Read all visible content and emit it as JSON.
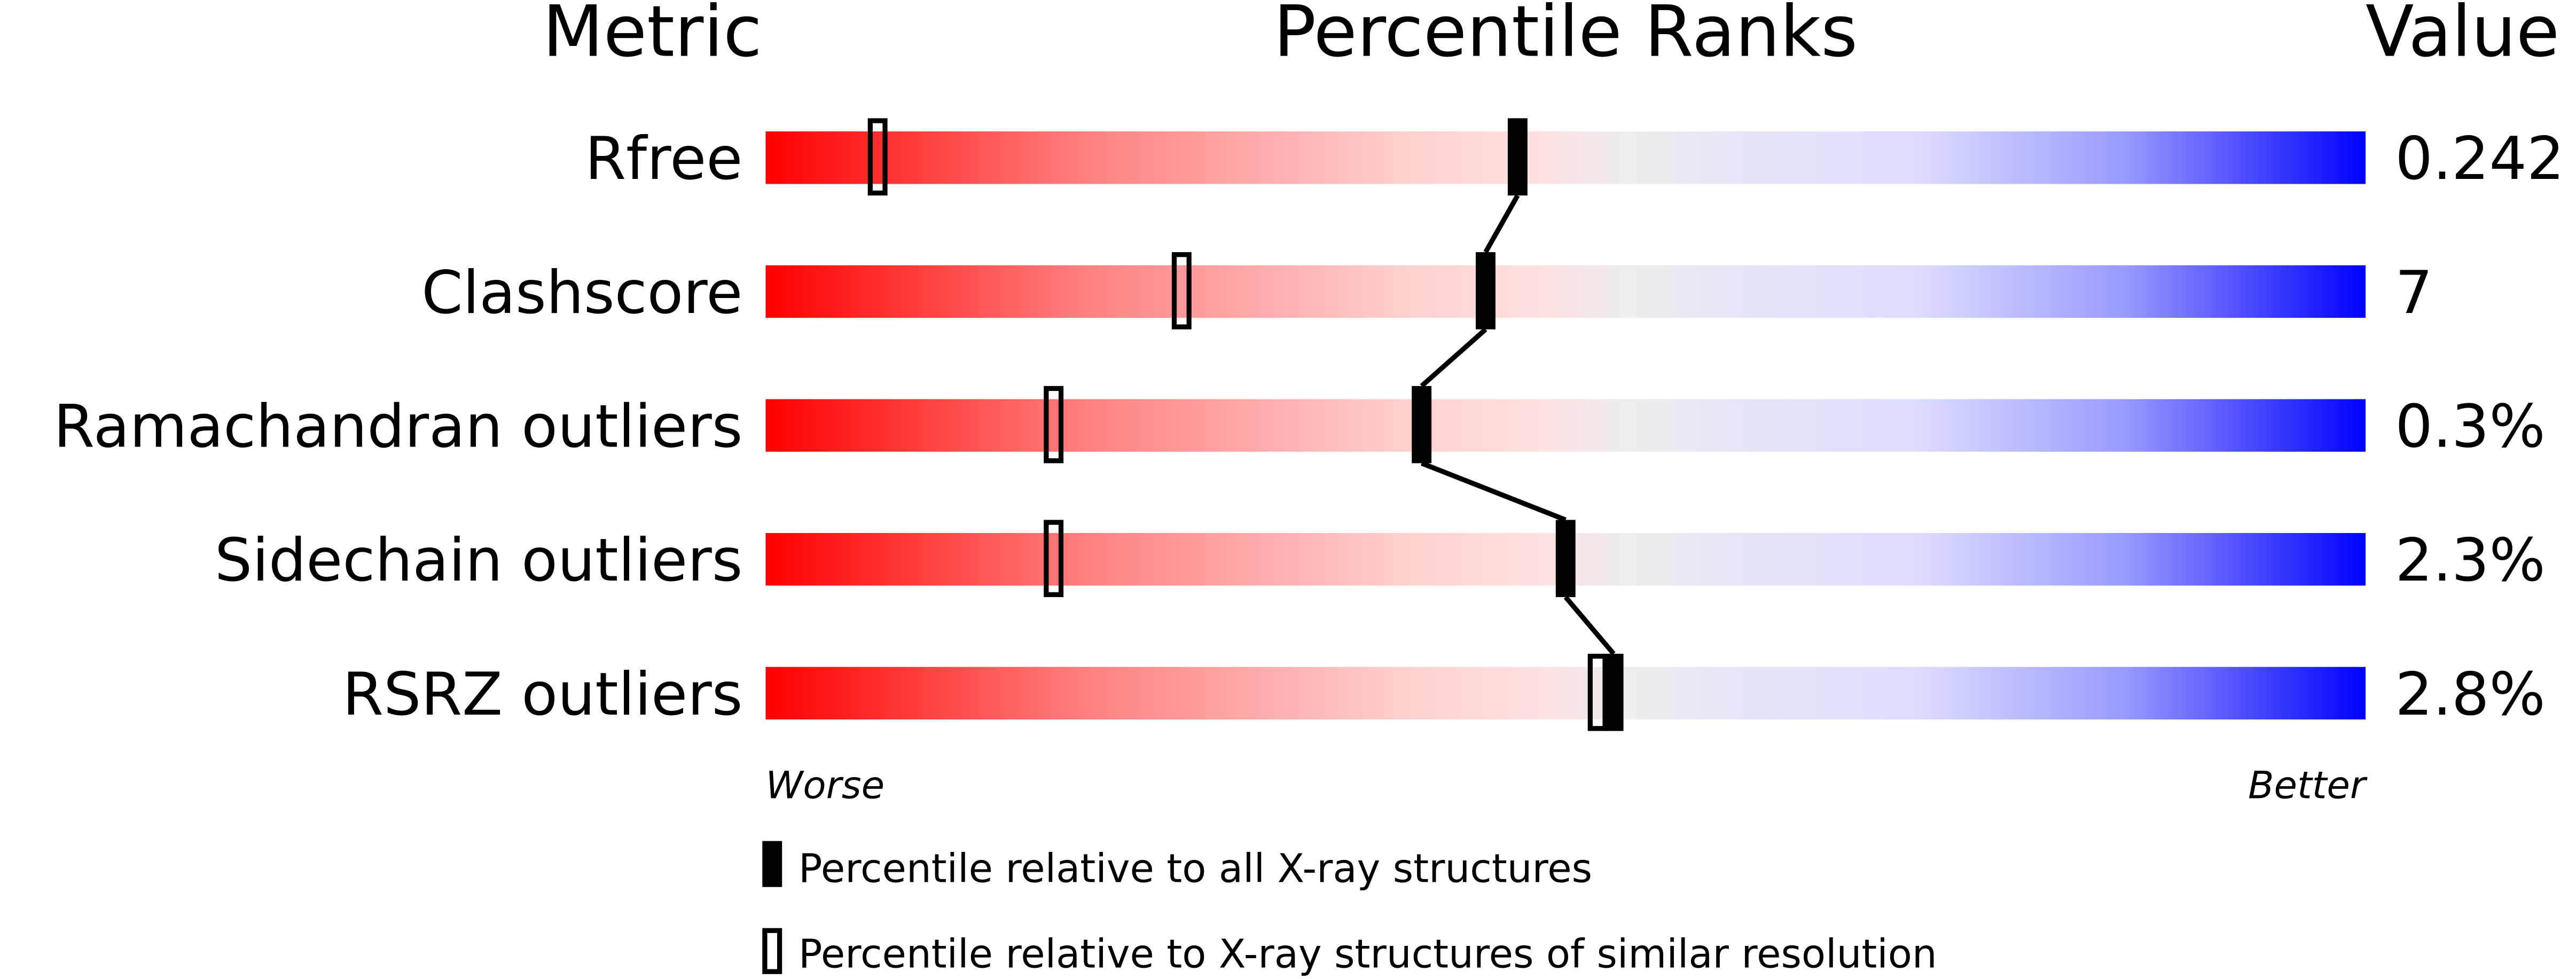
{
  "chart_data": {
    "type": "percentile-slider",
    "headers": {
      "metric": "Metric",
      "percentile": "Percentile Ranks",
      "value": "Value"
    },
    "xlim": [
      0,
      100
    ],
    "axis_labels": {
      "left": "Worse",
      "right": "Better"
    },
    "gradient_colors": [
      "#ff0000",
      "#ffdddd",
      "#eeeeee",
      "#ddddff",
      "#0000ff"
    ],
    "rows": [
      {
        "metric": "Rfree",
        "value": "0.242",
        "percentile_all": 47,
        "percentile_similar": 7
      },
      {
        "metric": "Clashscore",
        "value": "7",
        "percentile_all": 45,
        "percentile_similar": 26
      },
      {
        "metric": "Ramachandran outliers",
        "value": "0.3%",
        "percentile_all": 41,
        "percentile_similar": 18
      },
      {
        "metric": "Sidechain outliers",
        "value": "2.3%",
        "percentile_all": 50,
        "percentile_similar": 18
      },
      {
        "metric": "RSRZ outliers",
        "value": "2.8%",
        "percentile_all": 53,
        "percentile_similar": 52
      }
    ],
    "legend": [
      {
        "marker": "filled",
        "label": "Percentile relative to all X-ray structures"
      },
      {
        "marker": "open",
        "label": "Percentile relative to X-ray structures of similar resolution"
      }
    ]
  }
}
